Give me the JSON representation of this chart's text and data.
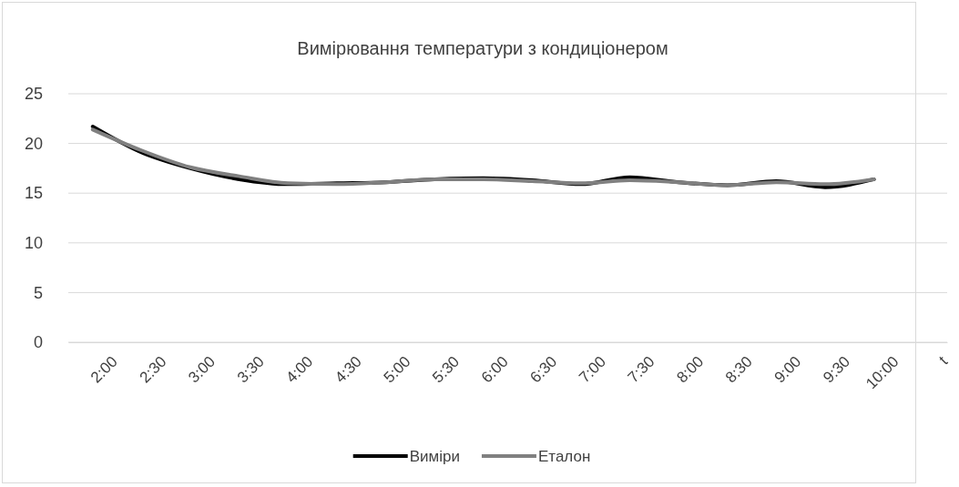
{
  "chart_data": {
    "type": "line",
    "title": "Вимірювання температури з кондиціонером",
    "categories": [
      "2:00",
      "2:30",
      "3:00",
      "3:30",
      "4:00",
      "4:30",
      "5:00",
      "5:30",
      "6:00",
      "6:30",
      "7:00",
      "7:30",
      "8:00",
      "8:30",
      "9:00",
      "9:30",
      "10:00",
      "t"
    ],
    "series": [
      {
        "name": "Виміри",
        "color": "#000000",
        "values": [
          21.7,
          19.1,
          17.5,
          16.4,
          15.9,
          16.0,
          16.1,
          16.4,
          16.5,
          16.3,
          15.9,
          16.6,
          16.1,
          15.8,
          16.2,
          15.6,
          16.4,
          null
        ]
      },
      {
        "name": "Еталон",
        "color": "#808080",
        "values": [
          21.4,
          19.3,
          17.6,
          16.7,
          16.0,
          15.9,
          16.1,
          16.4,
          16.4,
          16.2,
          16.0,
          16.3,
          16.1,
          15.8,
          16.1,
          15.9,
          16.4,
          null
        ]
      }
    ],
    "ylim": [
      0,
      25
    ],
    "yticks": [
      0,
      5,
      10,
      15,
      20,
      25
    ],
    "grid": "y",
    "legend": "bottom",
    "marker": "none",
    "line_style": "solid"
  }
}
